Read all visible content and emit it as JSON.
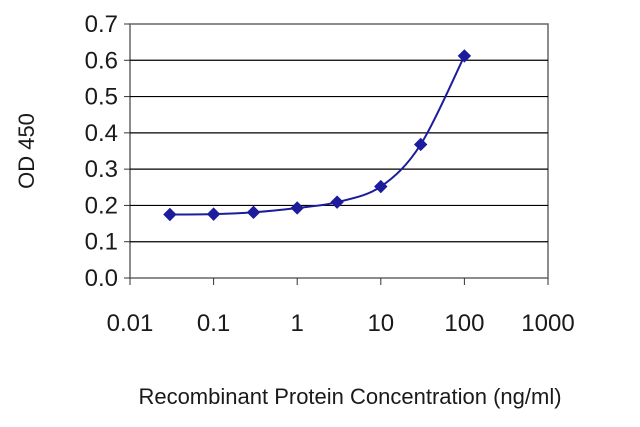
{
  "chart_data": {
    "type": "line",
    "title": "",
    "xlabel": "Recombinant Protein Concentration (ng/ml)",
    "ylabel": "OD 450",
    "x_scale": "log",
    "xlim": [
      0.01,
      1000
    ],
    "ylim": [
      0.0,
      0.7
    ],
    "x_ticks": [
      "0.01",
      "0.1",
      "1",
      "10",
      "100",
      "1000"
    ],
    "y_ticks": [
      "0.0",
      "0.1",
      "0.2",
      "0.3",
      "0.4",
      "0.5",
      "0.6",
      "0.7"
    ],
    "grid": "horizontal",
    "series": [
      {
        "x": [
          0.03,
          0.1,
          0.3,
          1,
          3,
          10,
          30,
          100
        ],
        "y": [
          0.175,
          0.176,
          0.181,
          0.193,
          0.209,
          0.252,
          0.368,
          0.612
        ]
      }
    ],
    "colors": {
      "line": "#1c1c9c",
      "marker": "#1c1c9c",
      "grid": "#000000",
      "frame": "#555555"
    }
  }
}
